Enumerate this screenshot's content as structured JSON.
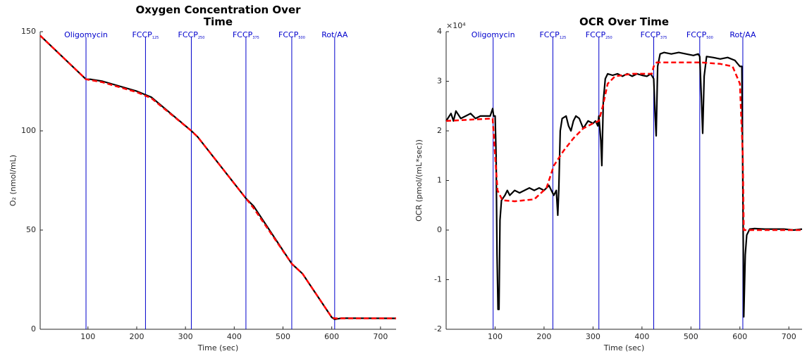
{
  "chart_data": [
    {
      "type": "line",
      "title": "Oxygen Concentration Over Time",
      "x_label": "Time (sec)",
      "y_label": "O₂ (nmol/mL)",
      "xlim": [
        2,
        732
      ],
      "xticks": [
        100,
        200,
        300,
        400,
        500,
        600,
        700
      ],
      "ylim": [
        0,
        150
      ],
      "yticks": [
        0,
        50,
        100,
        150
      ],
      "event_color": "#0000cc",
      "events": [
        {
          "label": "Oligomycin",
          "x": 96
        },
        {
          "label": "FCCP",
          "sub": "125",
          "x": 218
        },
        {
          "label": "FCCP",
          "sub": "250",
          "x": 312
        },
        {
          "label": "FCCP",
          "sub": "375",
          "x": 424
        },
        {
          "label": "FCCP",
          "sub": "500",
          "x": 518
        },
        {
          "label": "Rot/AA",
          "x": 606
        }
      ],
      "series": [
        {
          "color": "#000000",
          "style": "solid",
          "x": [
            2,
            96,
            105,
            130,
            200,
            230,
            312,
            325,
            424,
            440,
            518,
            540,
            600,
            606,
            620,
            732
          ],
          "values": [
            148,
            126,
            126,
            125,
            120,
            117,
            100,
            97,
            66,
            62,
            33,
            28,
            6,
            5,
            5.6,
            5.5
          ]
        },
        {
          "color": "#ff0000",
          "style": "dashed",
          "x": [
            2,
            96,
            130,
            200,
            230,
            312,
            325,
            424,
            440,
            518,
            540,
            600,
            606,
            620,
            732
          ],
          "values": [
            148,
            126,
            124.5,
            119.5,
            116.5,
            100,
            97,
            66,
            61,
            33,
            28,
            6,
            5.5,
            5.5,
            5.5
          ]
        }
      ]
    },
    {
      "type": "line",
      "title": "OCR Over Time",
      "x_label": "Time (sec)",
      "y_label": "OCR (pmol/(mL*sec))",
      "y_exponent": "×10⁴",
      "xlim": [
        0,
        727
      ],
      "xticks": [
        100,
        200,
        300,
        400,
        500,
        600,
        700
      ],
      "ylim": [
        -2,
        4
      ],
      "yticks": [
        -2,
        -1,
        0,
        1,
        2,
        3,
        4
      ],
      "event_color": "#0000cc",
      "events": [
        {
          "label": "Oligomycin",
          "x": 96
        },
        {
          "label": "FCCP",
          "sub": "125",
          "x": 218
        },
        {
          "label": "FCCP",
          "sub": "250",
          "x": 312
        },
        {
          "label": "FCCP",
          "sub": "375",
          "x": 424
        },
        {
          "label": "FCCP",
          "sub": "500",
          "x": 518
        },
        {
          "label": "Rot/AA",
          "x": 606
        }
      ],
      "series": [
        {
          "color": "#000000",
          "style": "solid",
          "x": [
            0,
            10,
            15,
            20,
            30,
            40,
            50,
            60,
            70,
            80,
            90,
            95,
            97,
            100,
            102,
            104,
            106,
            108,
            110,
            113,
            120,
            125,
            130,
            140,
            150,
            160,
            170,
            180,
            190,
            200,
            210,
            215,
            220,
            225,
            228,
            230,
            233,
            237,
            245,
            250,
            255,
            260,
            265,
            272,
            280,
            290,
            300,
            305,
            310,
            312,
            316,
            318,
            321,
            325,
            330,
            340,
            350,
            360,
            370,
            380,
            390,
            400,
            410,
            418,
            424,
            427,
            429,
            432,
            437,
            445,
            460,
            475,
            490,
            505,
            515,
            518,
            522,
            524,
            527,
            532,
            545,
            560,
            575,
            590,
            600,
            604,
            606,
            608,
            611,
            614,
            620,
            630,
            650,
            670,
            690,
            710,
            727
          ],
          "values": [
            2.2,
            2.35,
            2.2,
            2.4,
            2.25,
            2.3,
            2.35,
            2.25,
            2.3,
            2.3,
            2.3,
            2.45,
            2.3,
            2.3,
            1.5,
            -0.5,
            -1.6,
            -1.6,
            0.2,
            0.6,
            0.7,
            0.8,
            0.7,
            0.8,
            0.75,
            0.8,
            0.85,
            0.8,
            0.85,
            0.8,
            0.9,
            0.8,
            0.7,
            0.8,
            0.3,
            0.8,
            2.0,
            2.25,
            2.3,
            2.1,
            2.0,
            2.2,
            2.3,
            2.25,
            2.05,
            2.2,
            2.15,
            2.2,
            2.1,
            2.3,
            1.8,
            1.3,
            2.6,
            3.05,
            3.15,
            3.12,
            3.15,
            3.1,
            3.15,
            3.1,
            3.15,
            3.12,
            3.1,
            3.15,
            3.05,
            2.3,
            1.9,
            3.3,
            3.55,
            3.58,
            3.55,
            3.58,
            3.55,
            3.52,
            3.55,
            3.5,
            2.5,
            1.95,
            3.1,
            3.5,
            3.48,
            3.45,
            3.48,
            3.42,
            3.3,
            3.3,
            1.0,
            -1.75,
            -0.5,
            -0.1,
            0.02,
            0.03,
            0.02,
            0.02,
            0.02,
            0.0,
            0.02
          ]
        },
        {
          "color": "#ff0000",
          "style": "dashed",
          "x": [
            0,
            95,
            100,
            105,
            115,
            140,
            180,
            205,
            220,
            240,
            260,
            280,
            300,
            312,
            320,
            330,
            345,
            380,
            420,
            424,
            430,
            520,
            560,
            585,
            600,
            606,
            608,
            727
          ],
          "values": [
            2.2,
            2.25,
            1.5,
            0.8,
            0.6,
            0.58,
            0.62,
            0.85,
            1.3,
            1.6,
            1.85,
            2.05,
            2.15,
            2.2,
            2.5,
            2.95,
            3.1,
            3.15,
            3.15,
            3.3,
            3.38,
            3.38,
            3.35,
            3.3,
            2.95,
            1.5,
            0.0,
            0.0
          ]
        }
      ]
    }
  ]
}
